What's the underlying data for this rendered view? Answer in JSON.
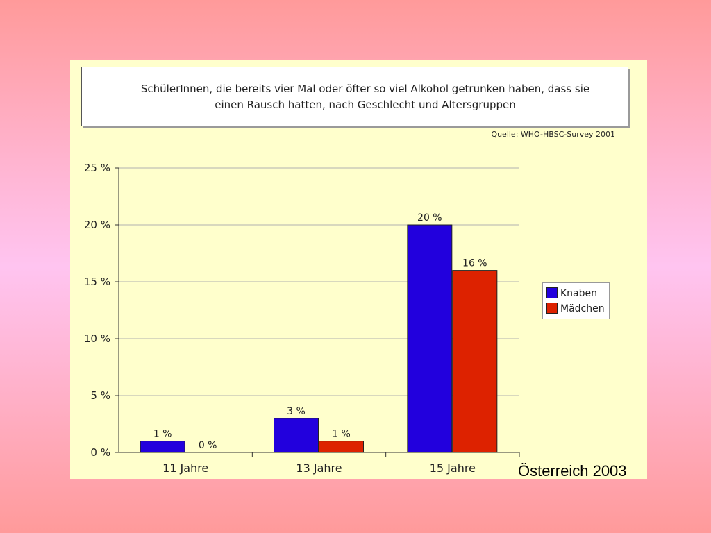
{
  "title_line1": "SchülerInnen, die bereits vier Mal oder öfter so viel Alkohol getrunken haben, dass sie",
  "title_line2": "einen Rausch hatten, nach Geschlecht und Altersgruppen",
  "source": "Quelle: WHO-HBSC-Survey 2001",
  "footer": "Österreich 2003",
  "colors": {
    "knaben": "#2200dd",
    "maedchen": "#dd2200",
    "panel": "#ffffcc"
  },
  "chart_data": {
    "type": "bar",
    "categories": [
      "11 Jahre",
      "13 Jahre",
      "15 Jahre"
    ],
    "series": [
      {
        "name": "Knaben",
        "values": [
          1,
          3,
          20
        ],
        "labels": [
          "1 %",
          "3 %",
          "20 %"
        ]
      },
      {
        "name": "Mädchen",
        "values": [
          0,
          1,
          16
        ],
        "labels": [
          "0 %",
          "1 %",
          "16 %"
        ]
      }
    ],
    "yticks": [
      "0 %",
      "5 %",
      "10 %",
      "15 %",
      "20 %",
      "25 %"
    ],
    "ylim": [
      0,
      25
    ],
    "grid": true,
    "legend_position": "right"
  }
}
